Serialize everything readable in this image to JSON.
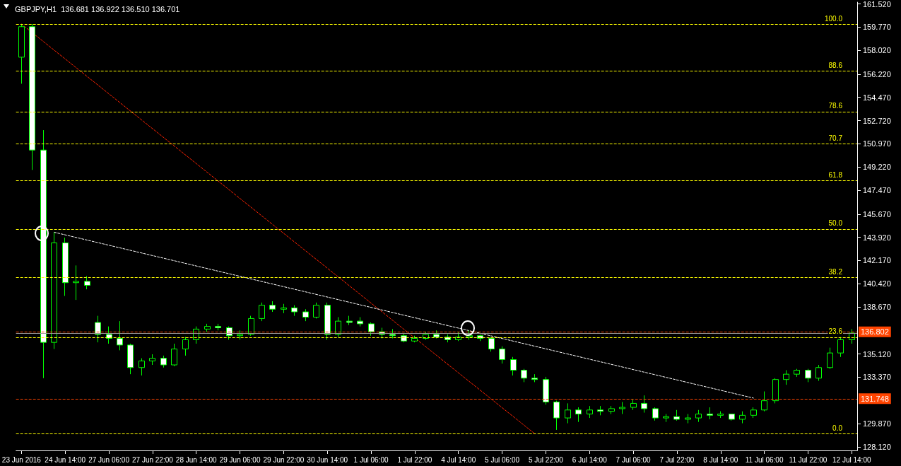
{
  "chart_data": {
    "type": "candlestick",
    "title": "GBPJPY,H1  136.681 136.922 136.510 136.701",
    "color": "#00ff00",
    "categories": [
      "23 Jun 2016",
      null,
      null,
      null,
      "24 Jun 14:00",
      null,
      null,
      null,
      "27 Jun 06:00",
      null,
      null,
      null,
      "27 Jun 22:00",
      null,
      null,
      null,
      "28 Jun 14:00",
      null,
      null,
      null,
      "29 Jun 06:00",
      null,
      null,
      null,
      "29 Jun 22:00",
      null,
      null,
      null,
      "30 Jun 14:00",
      null,
      null,
      null,
      "1 Jul 06:00",
      null,
      null,
      null,
      "1 Jul 22:00",
      null,
      null,
      null,
      "4 Jul 14:00",
      null,
      null,
      null,
      "5 Jul 06:00",
      null,
      null,
      null,
      "5 Jul 22:00",
      null,
      null,
      null,
      "6 Jul 14:00",
      null,
      null,
      null,
      "7 Jul 06:00",
      null,
      null,
      null,
      "7 Jul 22:00",
      null,
      null,
      null,
      "8 Jul 14:00",
      null,
      null,
      null,
      "11 Jul 06:00",
      null,
      null,
      null,
      "11 Jul 22:00",
      null,
      null,
      null,
      "12 Jul 14:00"
    ],
    "ohlc": [
      [
        157.5,
        160.0,
        155.5,
        159.8
      ],
      [
        159.8,
        160.0,
        149.0,
        150.5
      ],
      [
        150.5,
        152.0,
        133.3,
        136.0
      ],
      [
        136.0,
        144.3,
        135.5,
        143.5
      ],
      [
        143.5,
        143.9,
        139.5,
        140.5
      ],
      [
        140.5,
        141.8,
        139.2,
        140.6
      ],
      [
        140.6,
        141.0,
        140.0,
        140.3
      ],
      [
        137.5,
        138.0,
        136.0,
        136.6
      ],
      [
        136.6,
        137.2,
        135.9,
        136.3
      ],
      [
        136.3,
        137.6,
        135.4,
        135.8
      ],
      [
        135.8,
        135.9,
        133.6,
        134.1
      ],
      [
        134.1,
        134.8,
        133.5,
        134.6
      ],
      [
        134.6,
        135.1,
        134.3,
        134.8
      ],
      [
        134.8,
        135.0,
        134.1,
        134.3
      ],
      [
        134.3,
        135.9,
        134.2,
        135.5
      ],
      [
        135.5,
        136.4,
        135.0,
        136.2
      ],
      [
        136.2,
        137.2,
        135.9,
        137.0
      ],
      [
        137.0,
        137.4,
        136.8,
        137.2
      ],
      [
        137.2,
        137.4,
        136.9,
        137.1
      ],
      [
        137.1,
        137.2,
        136.2,
        136.5
      ],
      [
        136.5,
        136.9,
        136.2,
        136.6
      ],
      [
        136.6,
        138.0,
        136.5,
        137.8
      ],
      [
        137.8,
        139.0,
        137.6,
        138.8
      ],
      [
        138.8,
        139.1,
        138.3,
        138.5
      ],
      [
        138.5,
        138.9,
        138.2,
        138.6
      ],
      [
        138.6,
        138.8,
        138.0,
        138.3
      ],
      [
        138.3,
        138.5,
        137.6,
        137.9
      ],
      [
        137.9,
        139.0,
        137.8,
        138.8
      ],
      [
        138.8,
        139.0,
        136.2,
        136.6
      ],
      [
        136.6,
        137.9,
        136.4,
        137.6
      ],
      [
        137.6,
        138.0,
        137.3,
        137.5
      ],
      [
        137.6,
        137.9,
        137.2,
        137.4
      ],
      [
        137.4,
        137.5,
        136.5,
        136.8
      ],
      [
        136.8,
        137.1,
        136.3,
        136.6
      ],
      [
        136.6,
        137.0,
        136.3,
        136.5
      ],
      [
        136.5,
        136.7,
        136.0,
        136.1
      ],
      [
        136.1,
        136.5,
        136.0,
        136.3
      ],
      [
        136.3,
        136.8,
        136.2,
        136.6
      ],
      [
        136.6,
        136.9,
        136.3,
        136.4
      ],
      [
        136.4,
        136.6,
        136.0,
        136.2
      ],
      [
        136.2,
        136.8,
        136.1,
        136.4
      ],
      [
        136.4,
        136.9,
        136.2,
        136.5
      ],
      [
        136.5,
        136.6,
        136.1,
        136.3
      ],
      [
        136.3,
        136.4,
        135.3,
        135.5
      ],
      [
        135.5,
        135.7,
        134.4,
        134.7
      ],
      [
        134.7,
        134.9,
        133.5,
        133.9
      ],
      [
        133.9,
        134.0,
        133.0,
        133.3
      ],
      [
        133.3,
        133.6,
        133.0,
        133.2
      ],
      [
        133.2,
        133.4,
        131.3,
        131.5
      ],
      [
        131.5,
        131.6,
        129.4,
        130.3
      ],
      [
        130.3,
        131.4,
        129.9,
        130.9
      ],
      [
        130.9,
        131.1,
        130.0,
        130.6
      ],
      [
        130.6,
        131.2,
        130.3,
        130.9
      ],
      [
        130.9,
        131.2,
        130.5,
        130.8
      ],
      [
        130.8,
        131.2,
        130.6,
        131.0
      ],
      [
        131.0,
        131.5,
        130.6,
        131.1
      ],
      [
        131.1,
        131.7,
        130.9,
        131.4
      ],
      [
        131.4,
        132.0,
        130.7,
        131.0
      ],
      [
        131.0,
        131.1,
        130.1,
        130.3
      ],
      [
        130.3,
        130.6,
        130.0,
        130.4
      ],
      [
        130.4,
        130.9,
        130.1,
        130.2
      ],
      [
        130.2,
        130.6,
        129.9,
        130.3
      ],
      [
        130.3,
        130.9,
        130.0,
        130.6
      ],
      [
        130.6,
        131.1,
        130.2,
        130.5
      ],
      [
        130.5,
        130.8,
        130.3,
        130.6
      ],
      [
        130.6,
        130.6,
        130.1,
        130.2
      ],
      [
        130.2,
        130.8,
        129.9,
        130.5
      ],
      [
        130.5,
        131.1,
        130.3,
        130.9
      ],
      [
        130.9,
        132.3,
        130.8,
        131.6
      ],
      [
        131.6,
        133.3,
        131.4,
        133.2
      ],
      [
        133.2,
        133.9,
        132.8,
        133.6
      ],
      [
        133.6,
        134.0,
        133.4,
        133.9
      ],
      [
        133.9,
        134.0,
        133.0,
        133.3
      ],
      [
        133.3,
        134.3,
        133.1,
        134.1
      ],
      [
        134.1,
        135.6,
        134.0,
        135.2
      ],
      [
        135.2,
        136.4,
        134.9,
        136.2
      ],
      [
        136.2,
        137.0,
        135.9,
        136.701
      ]
    ],
    "series": [
      {
        "type": "line",
        "color": "#ff2200",
        "line_style": "dashed",
        "values": [
          160.0,
          null,
          null,
          null,
          null,
          null,
          null,
          null,
          null,
          null,
          null,
          null,
          null,
          null,
          null,
          null,
          null,
          null,
          null,
          null,
          null,
          null,
          null,
          null,
          null,
          null,
          null,
          null,
          null,
          null,
          null,
          null,
          null,
          null,
          null,
          null,
          null,
          null,
          null,
          null,
          null,
          null,
          null,
          null,
          null,
          null,
          null,
          129.1,
          null,
          null,
          null,
          null,
          null,
          null,
          null,
          null,
          null,
          null,
          null,
          null,
          null,
          null,
          null,
          null,
          null,
          null,
          null,
          null,
          null,
          null,
          null,
          null,
          null,
          null,
          null,
          null,
          null
        ]
      },
      {
        "type": "line",
        "color": "#ffffff",
        "line_style": "dashed",
        "values": [
          null,
          null,
          null,
          144.3,
          null,
          null,
          null,
          null,
          null,
          null,
          null,
          null,
          null,
          null,
          null,
          null,
          null,
          null,
          null,
          null,
          null,
          null,
          null,
          null,
          null,
          null,
          null,
          null,
          null,
          null,
          null,
          null,
          null,
          null,
          null,
          null,
          null,
          null,
          null,
          null,
          null,
          null,
          null,
          null,
          null,
          null,
          null,
          null,
          null,
          null,
          null,
          null,
          null,
          null,
          null,
          null,
          null,
          null,
          null,
          null,
          null,
          null,
          null,
          null,
          null,
          null,
          null,
          131.8,
          null,
          null,
          null,
          null,
          null,
          null,
          null,
          null,
          null
        ]
      }
    ],
    "marker": "none",
    "annotations": [
      {
        "text": "100.0",
        "y": 160.0
      },
      {
        "text": "88.6",
        "y": 156.48
      },
      {
        "text": "78.6",
        "y": 153.39
      },
      {
        "text": "70.7",
        "y": 150.95
      },
      {
        "text": "61.8",
        "y": 148.2
      },
      {
        "text": "50.0",
        "y": 144.55
      },
      {
        "text": "38.2",
        "y": 140.9
      },
      {
        "text": "23.6",
        "y": 136.39
      },
      {
        "text": "0.0",
        "y": 129.1
      }
    ],
    "ylim": [
      127.85,
      161.65
    ],
    "yticks": [
      {
        "value": 161.52,
        "label": "161.520"
      },
      {
        "value": 159.77,
        "label": "159.770"
      },
      {
        "value": 158.02,
        "label": "158.020"
      },
      {
        "value": 156.22,
        "label": "156.220"
      },
      {
        "value": 154.47,
        "label": "154.470"
      },
      {
        "value": 152.72,
        "label": "152.720"
      },
      {
        "value": 150.97,
        "label": "150.970"
      },
      {
        "value": 149.22,
        "label": "149.220"
      },
      {
        "value": 147.47,
        "label": "147.470"
      },
      {
        "value": 145.67,
        "label": "145.670"
      },
      {
        "value": 143.92,
        "label": "143.920"
      },
      {
        "value": 142.17,
        "label": "142.170"
      },
      {
        "value": 140.42,
        "label": "140.420"
      },
      {
        "value": 138.67,
        "label": "138.670"
      },
      {
        "value": 135.12,
        "label": "135.120"
      },
      {
        "value": 133.37,
        "label": "133.370"
      },
      {
        "value": 129.87,
        "label": "129.870"
      },
      {
        "value": 128.12,
        "label": "128.120"
      }
    ],
    "ref_lines": [
      {
        "axis": "y",
        "value": 160.0,
        "color": "#ffff00",
        "line_style": "dashed"
      },
      {
        "axis": "y",
        "value": 156.48,
        "color": "#ffff00",
        "line_style": "dashed"
      },
      {
        "axis": "y",
        "value": 153.39,
        "color": "#ffff00",
        "line_style": "dashed"
      },
      {
        "axis": "y",
        "value": 150.95,
        "color": "#ffff00",
        "line_style": "dashed"
      },
      {
        "axis": "y",
        "value": 148.2,
        "color": "#ffff00",
        "line_style": "dashed"
      },
      {
        "axis": "y",
        "value": 144.55,
        "color": "#ffff00",
        "line_style": "dashed"
      },
      {
        "axis": "y",
        "value": 140.9,
        "color": "#ffff00",
        "line_style": "dashed"
      },
      {
        "axis": "y",
        "value": 136.39,
        "color": "#ffff00",
        "line_style": "dashed"
      },
      {
        "axis": "y",
        "value": 129.1,
        "color": "#ffff00",
        "line_style": "dashed"
      },
      {
        "axis": "y",
        "value": 136.802,
        "label": "136.802",
        "color": "#ff4400",
        "line_style": "dashed"
      },
      {
        "axis": "y",
        "value": 131.748,
        "label": "131.748",
        "color": "#ff4400",
        "line_style": "dashed"
      },
      {
        "axis": "y",
        "value": 136.701,
        "color": "#9a9a9a",
        "line_style": "solid"
      }
    ]
  }
}
